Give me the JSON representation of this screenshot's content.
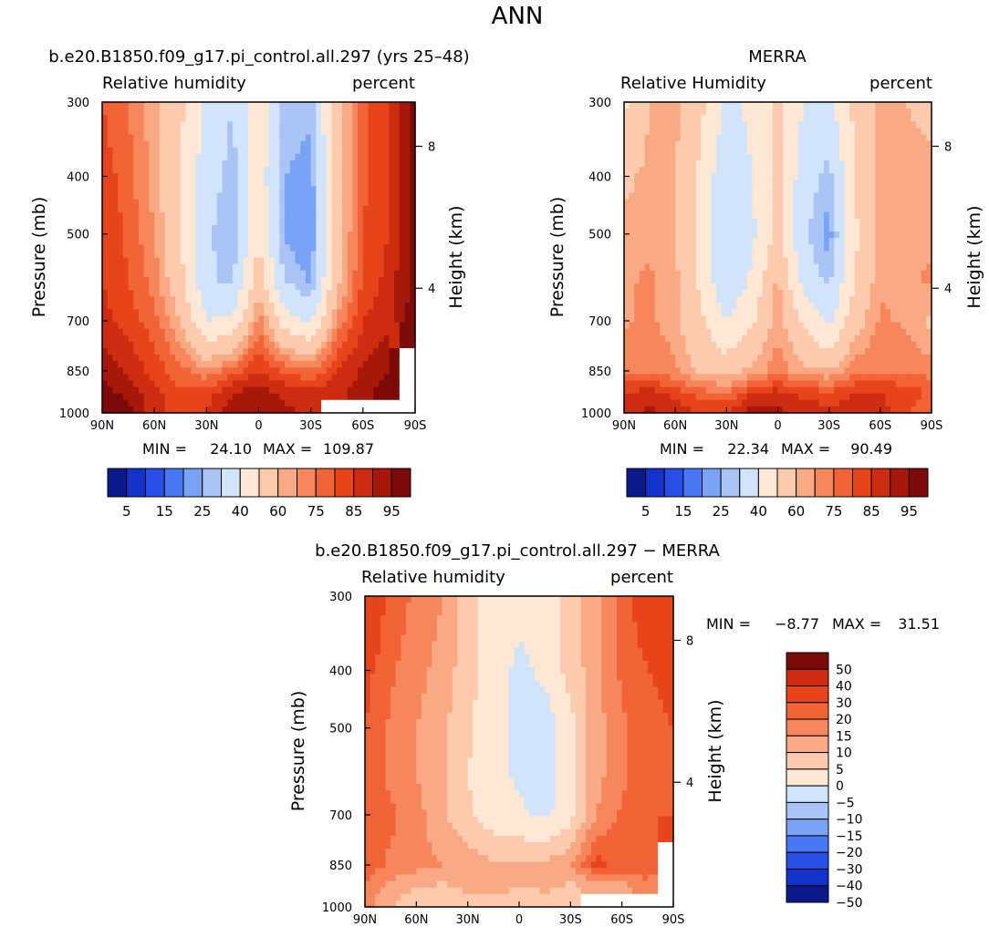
{
  "figure_title": "ANN",
  "colors": {
    "rh_scale": [
      "#0a1a8c",
      "#1432c8",
      "#2850e6",
      "#4678f5",
      "#7ba3f5",
      "#a9c4f5",
      "#d2e4fa",
      "#fde8d6",
      "#fccbad",
      "#f9aa84",
      "#f6875c",
      "#f26438",
      "#e7441c",
      "#cc2c10",
      "#a8180a",
      "#7d0a08"
    ],
    "diff_scale": [
      "#0a1a8c",
      "#1432c8",
      "#2850e6",
      "#4678f5",
      "#7ba3f5",
      "#a9c4f5",
      "#d2e4fa",
      "#fde8d6",
      "#fccbad",
      "#f9aa84",
      "#f6875c",
      "#f26438",
      "#e7441c",
      "#cc2c10",
      "#7d0a08"
    ],
    "missing": "#ffffff"
  },
  "chart_data": [
    {
      "type": "heatmap",
      "title": "b.e20.B1850.f09_g17.pi_control.all.297 (yrs 25–48)",
      "left_label": "Relative humidity",
      "right_label": "percent",
      "ylabel": "Pressure (mb)",
      "y2label": "Height (km)",
      "x_ticks": [
        "90N",
        "60N",
        "30N",
        "0",
        "30S",
        "60S",
        "90S"
      ],
      "x_values": [
        90,
        60,
        30,
        0,
        -30,
        -60,
        -90
      ],
      "y_ticks": [
        "300",
        "400",
        "500",
        "700",
        "850",
        "1000"
      ],
      "y_values": [
        300,
        400,
        500,
        700,
        850,
        1000
      ],
      "y2_ticks": [
        "8",
        "4"
      ],
      "min_label": "MIN =",
      "min": "24.10",
      "max_label": "MAX =",
      "max": "109.87",
      "levels": [
        5,
        10,
        15,
        20,
        25,
        30,
        40,
        50,
        60,
        65,
        70,
        75,
        80,
        85,
        90,
        95
      ],
      "colorbar_labels": [
        "5",
        "15",
        "25",
        "40",
        "60",
        "75",
        "85",
        "95"
      ],
      "field": {
        "lats": [
          90,
          75,
          60,
          45,
          30,
          15,
          0,
          -15,
          -30,
          -45,
          -60,
          -75,
          -90
        ],
        "pressures": [
          300,
          400,
          500,
          600,
          700,
          850,
          925,
          1000
        ],
        "values": [
          [
            75,
            70,
            62,
            52,
            38,
            30,
            48,
            28,
            27,
            55,
            74,
            80,
            92
          ],
          [
            78,
            72,
            63,
            50,
            34,
            27,
            46,
            25,
            22,
            55,
            74,
            80,
            92
          ],
          [
            80,
            74,
            65,
            50,
            31,
            26,
            50,
            24,
            20,
            55,
            75,
            80,
            92
          ],
          [
            80,
            75,
            68,
            53,
            32,
            28,
            56,
            30,
            24,
            57,
            76,
            82,
            93
          ],
          [
            82,
            78,
            72,
            60,
            40,
            42,
            68,
            45,
            38,
            66,
            80,
            84,
            93
          ],
          [
            88,
            84,
            78,
            72,
            66,
            72,
            80,
            74,
            70,
            80,
            86,
            90,
            null
          ],
          [
            93,
            88,
            82,
            76,
            78,
            85,
            88,
            84,
            82,
            84,
            88,
            93,
            null
          ],
          [
            97,
            92,
            82,
            78,
            80,
            88,
            87,
            86,
            84,
            null,
            null,
            null,
            null
          ]
        ]
      }
    },
    {
      "type": "heatmap",
      "title": "MERRA",
      "left_label": "Relative Humidity",
      "right_label": "percent",
      "ylabel": "Pressure (mb)",
      "y2label": "Height (km)",
      "x_ticks": [
        "90N",
        "60N",
        "30N",
        "0",
        "30S",
        "60S",
        "90S"
      ],
      "x_values": [
        90,
        60,
        30,
        0,
        -30,
        -60,
        -90
      ],
      "y_ticks": [
        "300",
        "400",
        "500",
        "700",
        "850",
        "1000"
      ],
      "y_values": [
        300,
        400,
        500,
        700,
        850,
        1000
      ],
      "y2_ticks": [
        "8",
        "4"
      ],
      "min_label": "MIN =",
      "min": "22.34",
      "max_label": "MAX =",
      "max": "90.49",
      "levels": [
        5,
        10,
        15,
        20,
        25,
        30,
        40,
        50,
        60,
        65,
        70,
        75,
        80,
        85,
        90,
        95
      ],
      "colorbar_labels": [
        "5",
        "15",
        "25",
        "40",
        "60",
        "75",
        "85",
        "95"
      ],
      "field": {
        "lats": [
          90,
          75,
          60,
          45,
          30,
          15,
          0,
          -15,
          -30,
          -45,
          -60,
          -75,
          -90
        ],
        "pressures": [
          300,
          400,
          500,
          600,
          700,
          850,
          925,
          1000
        ],
        "values": [
          [
            48,
            60,
            62,
            52,
            38,
            42,
            52,
            40,
            38,
            52,
            62,
            60,
            58
          ],
          [
            58,
            62,
            60,
            48,
            32,
            40,
            52,
            35,
            27,
            50,
            62,
            62,
            62
          ],
          [
            62,
            64,
            60,
            46,
            30,
            38,
            52,
            32,
            22,
            48,
            62,
            64,
            64
          ],
          [
            64,
            66,
            62,
            48,
            32,
            42,
            62,
            36,
            28,
            50,
            64,
            64,
            66
          ],
          [
            64,
            66,
            62,
            52,
            40,
            48,
            64,
            48,
            38,
            56,
            66,
            64,
            58
          ],
          [
            70,
            70,
            66,
            58,
            56,
            62,
            68,
            62,
            60,
            68,
            70,
            70,
            68
          ],
          [
            80,
            82,
            78,
            72,
            70,
            80,
            82,
            78,
            76,
            80,
            80,
            78,
            74
          ],
          [
            84,
            86,
            84,
            80,
            80,
            88,
            86,
            84,
            82,
            84,
            82,
            76,
            70
          ]
        ]
      }
    },
    {
      "type": "heatmap",
      "title": "b.e20.B1850.f09_g17.pi_control.all.297 − MERRA",
      "left_label": "Relative humidity",
      "right_label": "percent",
      "ylabel": "Pressure (mb)",
      "y2label": "Height (km)",
      "x_ticks": [
        "90N",
        "60N",
        "30N",
        "0",
        "30S",
        "60S",
        "90S"
      ],
      "x_values": [
        90,
        60,
        30,
        0,
        -30,
        -60,
        -90
      ],
      "y_ticks": [
        "300",
        "400",
        "500",
        "700",
        "850",
        "1000"
      ],
      "y_values": [
        300,
        400,
        500,
        700,
        850,
        1000
      ],
      "y2_ticks": [
        "8",
        "4"
      ],
      "min_label": "MIN =",
      "min": "−8.77",
      "max_label": "MAX =",
      "max": "31.51",
      "levels": [
        -50,
        -40,
        -30,
        -20,
        -15,
        -10,
        -5,
        0,
        5,
        10,
        15,
        20,
        30,
        40,
        50
      ],
      "colorbar_labels": [
        "50",
        "40",
        "30",
        "20",
        "15",
        "10",
        "5",
        "0",
        "−5",
        "−10",
        "−15",
        "−20",
        "−30",
        "−40",
        "−50"
      ],
      "field": {
        "lats": [
          90,
          75,
          60,
          45,
          30,
          15,
          0,
          -15,
          -30,
          -45,
          -60,
          -75,
          -90
        ],
        "pressures": [
          300,
          400,
          500,
          600,
          700,
          850,
          925,
          1000
        ],
        "values": [
          [
            27,
            18,
            14,
            10,
            2,
            -2,
            -4,
            -3,
            2,
            8,
            18,
            24,
            25
          ],
          [
            22,
            16,
            12,
            8,
            2,
            -3,
            -6,
            -4,
            2,
            8,
            16,
            20,
            22
          ],
          [
            20,
            14,
            10,
            6,
            1,
            -4,
            -6,
            -8,
            -2,
            8,
            14,
            18,
            20
          ],
          [
            18,
            14,
            10,
            6,
            0,
            -3,
            -6,
            -8,
            -2,
            8,
            14,
            18,
            20
          ],
          [
            18,
            16,
            12,
            6,
            1,
            -3,
            -4,
            -6,
            -2,
            10,
            16,
            18,
            20
          ],
          [
            18,
            14,
            12,
            10,
            8,
            6,
            5,
            6,
            9,
            22,
            18,
            18,
            null
          ],
          [
            14,
            8,
            5,
            4,
            6,
            7,
            5,
            6,
            4,
            6,
            8,
            14,
            null
          ],
          [
            12,
            5,
            0,
            2,
            2,
            2,
            1,
            2,
            2,
            null,
            null,
            null,
            null
          ]
        ]
      }
    }
  ]
}
